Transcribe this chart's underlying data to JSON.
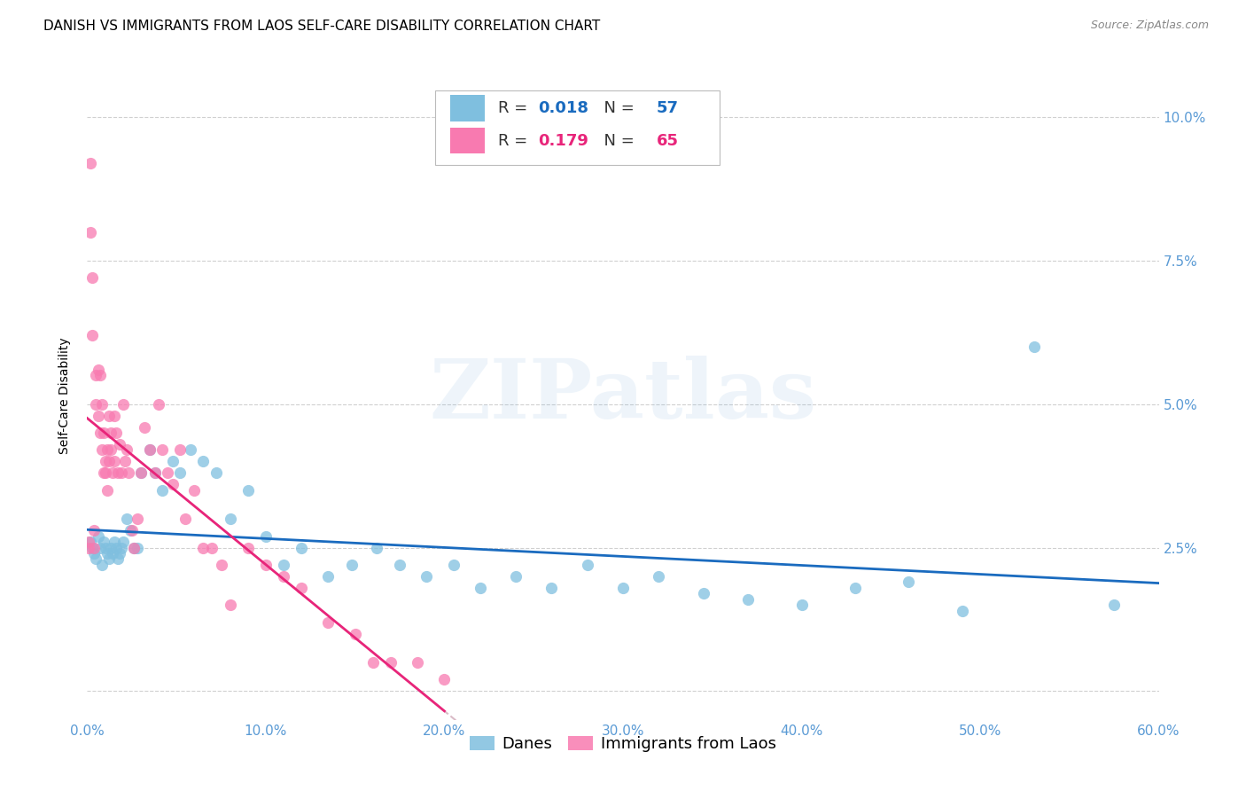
{
  "title": "DANISH VS IMMIGRANTS FROM LAOS SELF-CARE DISABILITY CORRELATION CHART",
  "source": "Source: ZipAtlas.com",
  "ylabel": "Self-Care Disability",
  "watermark": "ZIPatlas",
  "xlim": [
    0.0,
    0.6
  ],
  "ylim": [
    -0.005,
    0.108
  ],
  "yticks": [
    0.0,
    0.025,
    0.05,
    0.075,
    0.1
  ],
  "ytick_labels": [
    "",
    "2.5%",
    "5.0%",
    "7.5%",
    "10.0%"
  ],
  "xticks": [
    0.0,
    0.1,
    0.2,
    0.3,
    0.4,
    0.5,
    0.6
  ],
  "xtick_labels": [
    "0.0%",
    "10.0%",
    "20.0%",
    "30.0%",
    "40.0%",
    "50.0%",
    "60.0%"
  ],
  "danes_color": "#7fbfdf",
  "immigrants_color": "#f87ab0",
  "danes_R": 0.018,
  "danes_N": 57,
  "immigrants_R": 0.179,
  "immigrants_N": 65,
  "danes_line_color": "#1a6bbf",
  "immigrants_line_color": "#e8257a",
  "dashed_line_color": "#d4b0be",
  "tick_color": "#5b9bd5",
  "grid_color": "#d0d0d0",
  "background_color": "#ffffff",
  "danes_x": [
    0.002,
    0.003,
    0.004,
    0.005,
    0.006,
    0.007,
    0.008,
    0.009,
    0.01,
    0.011,
    0.012,
    0.013,
    0.014,
    0.015,
    0.016,
    0.017,
    0.018,
    0.019,
    0.02,
    0.022,
    0.024,
    0.026,
    0.028,
    0.03,
    0.035,
    0.038,
    0.042,
    0.048,
    0.052,
    0.058,
    0.065,
    0.072,
    0.08,
    0.09,
    0.1,
    0.11,
    0.12,
    0.135,
    0.148,
    0.162,
    0.175,
    0.19,
    0.205,
    0.22,
    0.24,
    0.26,
    0.28,
    0.3,
    0.32,
    0.345,
    0.37,
    0.4,
    0.43,
    0.46,
    0.49,
    0.53,
    0.575
  ],
  "danes_y": [
    0.026,
    0.025,
    0.024,
    0.023,
    0.027,
    0.025,
    0.022,
    0.026,
    0.025,
    0.024,
    0.023,
    0.025,
    0.024,
    0.026,
    0.025,
    0.023,
    0.024,
    0.025,
    0.026,
    0.03,
    0.028,
    0.025,
    0.025,
    0.038,
    0.042,
    0.038,
    0.035,
    0.04,
    0.038,
    0.042,
    0.04,
    0.038,
    0.03,
    0.035,
    0.027,
    0.022,
    0.025,
    0.02,
    0.022,
    0.025,
    0.022,
    0.02,
    0.022,
    0.018,
    0.02,
    0.018,
    0.022,
    0.018,
    0.02,
    0.017,
    0.016,
    0.015,
    0.018,
    0.019,
    0.014,
    0.06,
    0.015
  ],
  "immigrants_x": [
    0.001,
    0.001,
    0.002,
    0.002,
    0.003,
    0.003,
    0.004,
    0.004,
    0.005,
    0.005,
    0.006,
    0.006,
    0.007,
    0.007,
    0.008,
    0.008,
    0.009,
    0.009,
    0.01,
    0.01,
    0.011,
    0.011,
    0.012,
    0.012,
    0.013,
    0.013,
    0.014,
    0.015,
    0.015,
    0.016,
    0.017,
    0.018,
    0.019,
    0.02,
    0.021,
    0.022,
    0.023,
    0.025,
    0.026,
    0.028,
    0.03,
    0.032,
    0.035,
    0.038,
    0.04,
    0.042,
    0.045,
    0.048,
    0.052,
    0.055,
    0.06,
    0.065,
    0.07,
    0.075,
    0.08,
    0.09,
    0.1,
    0.11,
    0.12,
    0.135,
    0.15,
    0.16,
    0.17,
    0.185,
    0.2
  ],
  "immigrants_y": [
    0.025,
    0.026,
    0.092,
    0.08,
    0.072,
    0.062,
    0.025,
    0.028,
    0.05,
    0.055,
    0.048,
    0.056,
    0.045,
    0.055,
    0.05,
    0.042,
    0.038,
    0.045,
    0.04,
    0.038,
    0.042,
    0.035,
    0.048,
    0.04,
    0.045,
    0.042,
    0.038,
    0.048,
    0.04,
    0.045,
    0.038,
    0.043,
    0.038,
    0.05,
    0.04,
    0.042,
    0.038,
    0.028,
    0.025,
    0.03,
    0.038,
    0.046,
    0.042,
    0.038,
    0.05,
    0.042,
    0.038,
    0.036,
    0.042,
    0.03,
    0.035,
    0.025,
    0.025,
    0.022,
    0.015,
    0.025,
    0.022,
    0.02,
    0.018,
    0.012,
    0.01,
    0.005,
    0.005,
    0.005,
    0.002
  ]
}
